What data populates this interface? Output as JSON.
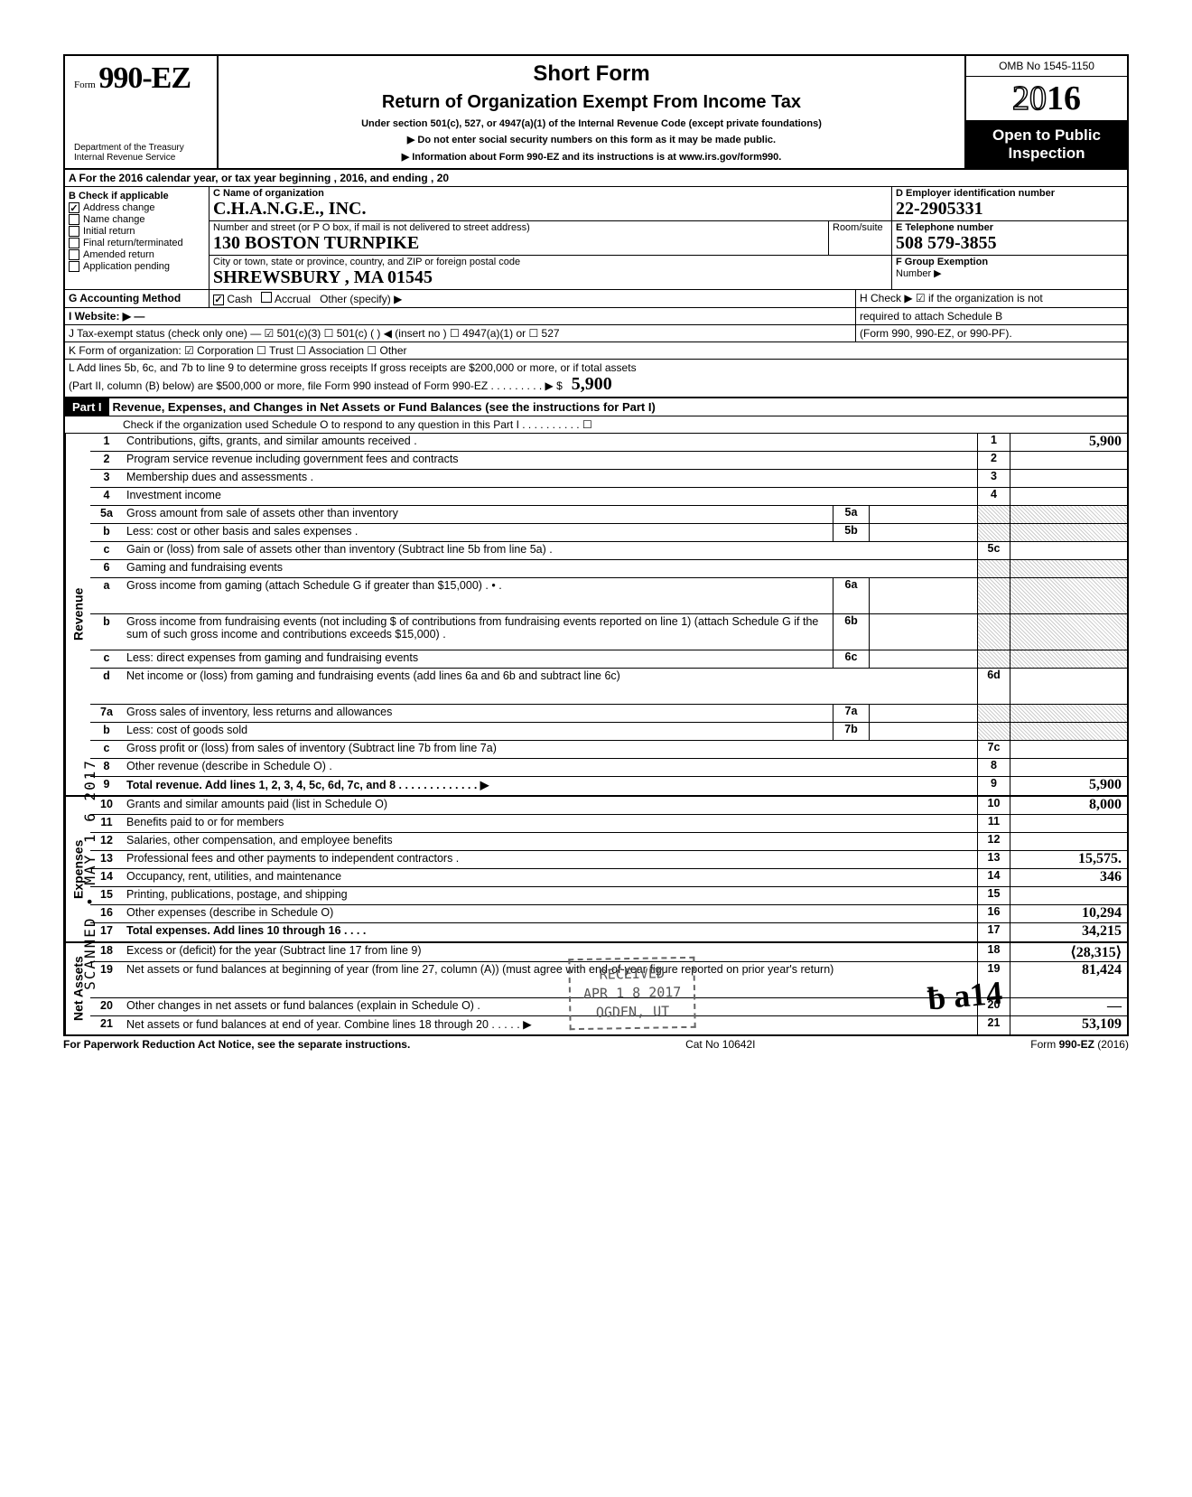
{
  "header": {
    "form_word": "Form",
    "form_num": "990-EZ",
    "dept1": "Department of the Treasury",
    "dept2": "Internal Revenue Service",
    "title": "Short Form",
    "subtitle": "Return of Organization Exempt From Income Tax",
    "sub2": "Under section 501(c), 527, or 4947(a)(1) of the Internal Revenue Code (except private foundations)",
    "warn": "▶ Do not enter social security numbers on this form as it may be made public.",
    "info": "▶ Information about Form 990-EZ and its instructions is at www.irs.gov/form990.",
    "omb": "OMB No 1545-1150",
    "year_a": "20",
    "year_b": "16",
    "open": "Open to Public Inspection"
  },
  "A": "A  For the 2016 calendar year, or tax year beginning                                          , 2016, and ending                              , 20",
  "B": {
    "title": "B  Check if applicable",
    "items": [
      "Address change",
      "Name change",
      "Initial return",
      "Final return/terminated",
      "Amended return",
      "Application pending"
    ],
    "checked": [
      true,
      false,
      false,
      false,
      false,
      false
    ]
  },
  "C": {
    "label": "C  Name of organization",
    "value": "C.H.A.N.G.E., INC."
  },
  "street": {
    "label": "Number and street (or P O  box, if mail is not delivered to street address)",
    "value": "130  BOSTON  TURNPIKE",
    "room": "Room/suite"
  },
  "city": {
    "label": "City or town, state or province, country, and ZIP or foreign postal code",
    "value": "SHREWSBURY , MA    01545"
  },
  "D": {
    "label": "D Employer identification number",
    "value": "22-2905331"
  },
  "E": {
    "label": "E  Telephone number",
    "value": "508 579-3855"
  },
  "F": {
    "label": "F  Group Exemption",
    "label2": "Number ▶",
    "value": ""
  },
  "G": {
    "label": "G  Accounting Method",
    "cash": "Cash",
    "accrual": "Accrual",
    "other": "Other (specify) ▶"
  },
  "H": {
    "text": "H  Check ▶ ☑ if the organization is not",
    "text2": "required to attach Schedule B",
    "text3": "(Form 990, 990-EZ, or 990-PF)."
  },
  "I": "I   Website: ▶    —",
  "J": "J  Tax-exempt status (check only one) —  ☑ 501(c)(3)   ☐ 501(c) (        ) ◀ (insert no ) ☐ 4947(a)(1) or   ☐ 527",
  "K": "K  Form of organization:   ☑ Corporation     ☐ Trust            ☐ Association       ☐ Other",
  "L": {
    "text": "L  Add lines 5b, 6c, and 7b to line 9 to determine gross receipts  If gross receipts are $200,000 or more, or if total assets",
    "text2": "(Part II, column (B) below) are $500,000 or more, file Form 990 instead of Form 990-EZ   .   .   .   .   .   .   .   .   .   ▶   $",
    "value": "5,900"
  },
  "part1": {
    "label": "Part I",
    "title": "Revenue, Expenses, and Changes in Net Assets or Fund Balances (see the instructions for Part I)",
    "check": "Check if the organization used Schedule O to respond to any question in this Part I  .   .   .   .   .   .   .   .   .   .   ☐"
  },
  "sections": {
    "revenue": "Revenue",
    "expenses": "Expenses",
    "netassets": "Net Assets"
  },
  "lines": [
    {
      "n": "1",
      "d": "Contributions, gifts, grants, and similar amounts received .",
      "k": "1",
      "v": "5,900"
    },
    {
      "n": "2",
      "d": "Program service revenue including government fees and contracts",
      "k": "2",
      "v": ""
    },
    {
      "n": "3",
      "d": "Membership dues and assessments .",
      "k": "3",
      "v": ""
    },
    {
      "n": "4",
      "d": "Investment income",
      "k": "4",
      "v": ""
    },
    {
      "n": "5a",
      "d": "Gross amount from sale of assets other than inventory",
      "mk": "5a",
      "mv": "",
      "k": "",
      "v": "",
      "shade": true
    },
    {
      "n": "b",
      "d": "Less: cost or other basis and sales expenses .",
      "mk": "5b",
      "mv": "",
      "k": "",
      "v": "",
      "shade": true
    },
    {
      "n": "c",
      "d": "Gain or (loss) from sale of assets other than inventory (Subtract line 5b from line 5a)  .",
      "k": "5c",
      "v": ""
    },
    {
      "n": "6",
      "d": "Gaming and fundraising events",
      "k": "",
      "v": "",
      "shade": true
    },
    {
      "n": "a",
      "d": "Gross income from gaming (attach Schedule G if greater than $15,000)  . • .",
      "mk": "6a",
      "mv": "",
      "k": "",
      "v": "",
      "shade": true,
      "tall": true
    },
    {
      "n": "b",
      "d": "Gross income from fundraising events (not including  $               of contributions from fundraising events reported on line 1) (attach Schedule G if the sum of such gross income and contributions exceeds $15,000) .",
      "mk": "6b",
      "mv": "",
      "k": "",
      "v": "",
      "shade": true,
      "tall": true
    },
    {
      "n": "c",
      "d": "Less: direct expenses from gaming and fundraising events",
      "mk": "6c",
      "mv": "",
      "k": "",
      "v": "",
      "shade": true
    },
    {
      "n": "d",
      "d": "Net income or (loss) from gaming and fundraising events (add lines 6a and 6b and subtract line 6c)",
      "k": "6d",
      "v": "",
      "tall": true
    },
    {
      "n": "7a",
      "d": "Gross sales of inventory, less returns and allowances",
      "mk": "7a",
      "mv": "",
      "k": "",
      "v": "",
      "shade": true
    },
    {
      "n": "b",
      "d": "Less: cost of goods sold",
      "mk": "7b",
      "mv": "",
      "k": "",
      "v": "",
      "shade": true
    },
    {
      "n": "c",
      "d": "Gross profit or (loss) from sales of inventory (Subtract line 7b from line 7a)",
      "k": "7c",
      "v": ""
    },
    {
      "n": "8",
      "d": "Other revenue (describe in Schedule O) .",
      "k": "8",
      "v": ""
    },
    {
      "n": "9",
      "d": "Total revenue. Add lines 1, 2, 3, 4, 5c, 6d, 7c, and 8   .   .   .   .   .   .   .   .   .   .   .   .   .   ▶",
      "k": "9",
      "v": "5,900",
      "bold": true
    }
  ],
  "exp_lines": [
    {
      "n": "10",
      "d": "Grants and similar amounts paid (list in Schedule O)",
      "k": "10",
      "v": "8,000"
    },
    {
      "n": "11",
      "d": "Benefits paid to or for members",
      "k": "11",
      "v": ""
    },
    {
      "n": "12",
      "d": "Salaries, other compensation, and employee benefits",
      "k": "12",
      "v": ""
    },
    {
      "n": "13",
      "d": "Professional fees and other payments to independent contractors .",
      "k": "13",
      "v": "15,575."
    },
    {
      "n": "14",
      "d": "Occupancy, rent, utilities, and maintenance",
      "k": "14",
      "v": "346"
    },
    {
      "n": "15",
      "d": "Printing, publications, postage, and shipping",
      "k": "15",
      "v": ""
    },
    {
      "n": "16",
      "d": "Other expenses (describe in Schedule O)",
      "k": "16",
      "v": "10,294"
    },
    {
      "n": "17",
      "d": "Total expenses. Add lines 10 through 16   .   .   .   .",
      "k": "17",
      "v": "34,215",
      "bold": true
    }
  ],
  "na_lines": [
    {
      "n": "18",
      "d": "Excess or (deficit) for the year (Subtract line 17 from line 9)",
      "k": "18",
      "v": "⟨28,315⟩"
    },
    {
      "n": "19",
      "d": "Net assets or fund balances at beginning of year (from line 27, column (A)) (must agree with end-of-year figure reported on prior year's return)",
      "k": "19",
      "v": "81,424",
      "tall": true
    },
    {
      "n": "20",
      "d": "Other changes in net assets or fund balances (explain in Schedule O) .",
      "k": "20",
      "v": "—"
    },
    {
      "n": "21",
      "d": "Net assets or fund balances at end of year. Combine lines 18 through 20   .   .   .   .   .   ▶",
      "k": "21",
      "v": "53,109"
    }
  ],
  "footer": {
    "left": "For Paperwork Reduction Act Notice, see the separate instructions.",
    "mid": "Cat  No  10642I",
    "right": "Form 990-EZ (2016)"
  },
  "stamp": {
    "l1": "RECEIVED",
    "l2": "APR 1 8 2017",
    "l3": "OGDEN, UT"
  },
  "vstamp": "SCANNED • MAY 1 6 2017",
  "sig": "ƀ  a14",
  "colors": {
    "ink": "#000000",
    "bg": "#ffffff",
    "shade": "#cccccc",
    "stamp": "#555555"
  }
}
